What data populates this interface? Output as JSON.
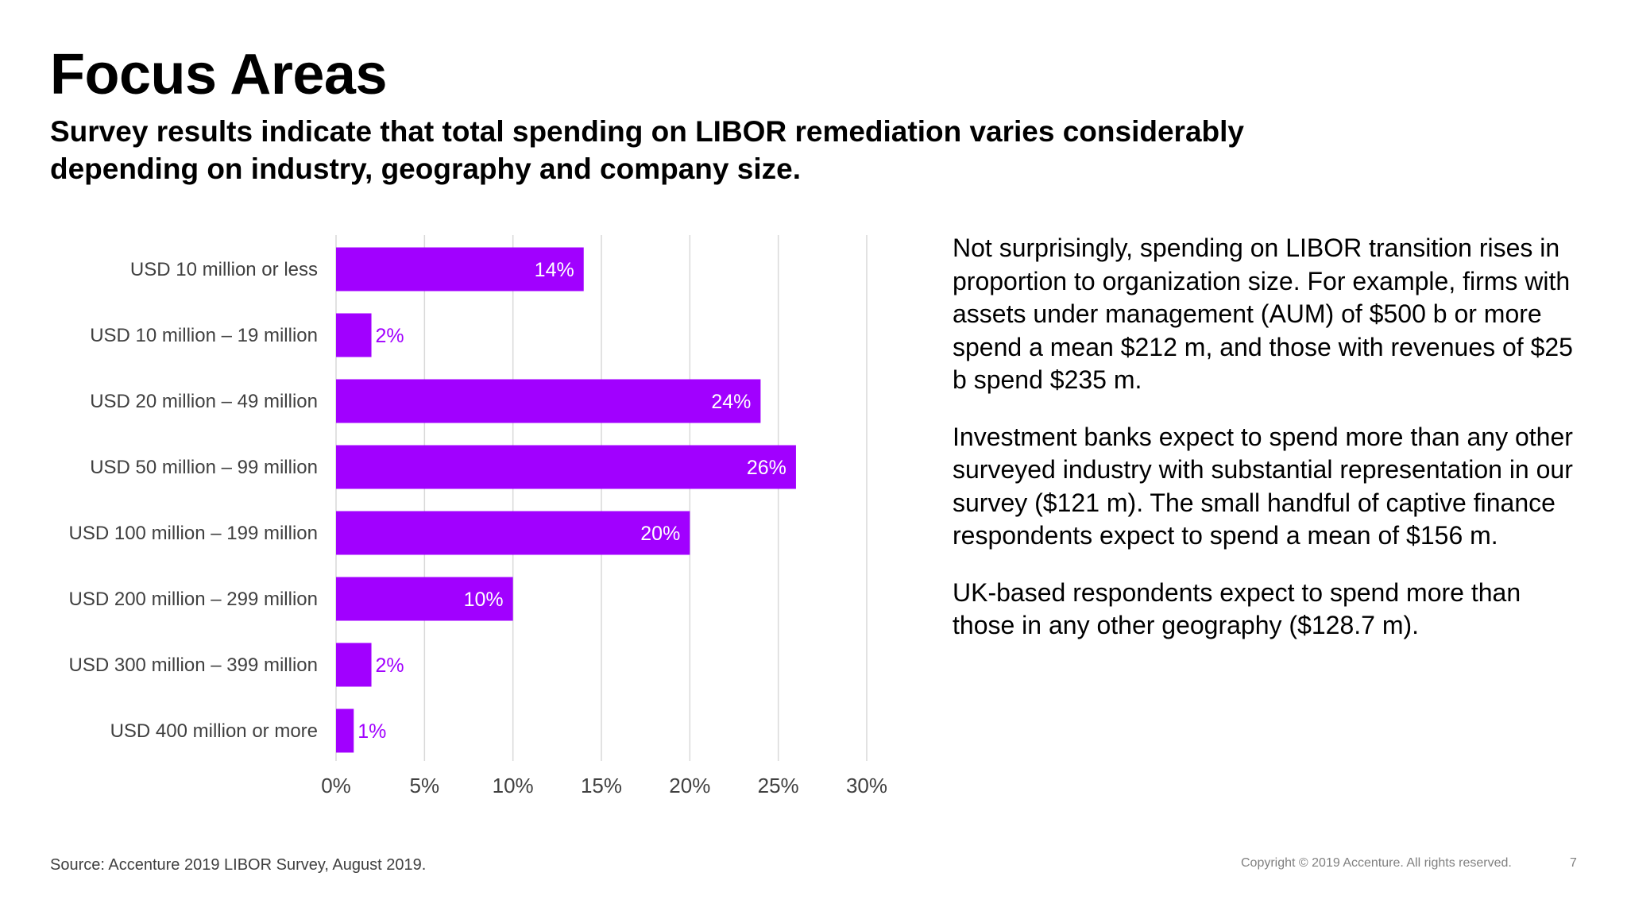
{
  "slide": {
    "title": "Focus Areas",
    "subtitle": "Survey results indicate that total spending on LIBOR remediation varies considerably depending on industry, geography and company size.",
    "paragraphs": [
      "Not surprisingly, spending on LIBOR transition rises in proportion to organization size. For example, firms with assets under management (AUM) of $500 b or more spend a mean $212 m, and those with revenues of $25 b spend $235 m.",
      "Investment banks expect to spend more than any other surveyed industry with substantial representation in our survey ($121 m). The small handful of captive finance respondents expect to spend a mean of $156 m.",
      "UK-based respondents expect to spend more than those in any other geography ($128.7 m)."
    ],
    "source": "Source: Accenture 2019 LIBOR Survey, August 2019.",
    "copyright": "Copyright © 2019 Accenture. All rights reserved.",
    "page_number": "7"
  },
  "chart_data": {
    "type": "bar",
    "orientation": "horizontal",
    "categories": [
      "USD 10 million or less",
      "USD 10 million – 19 million",
      "USD 20 million – 49 million",
      "USD 50 million – 99 million",
      "USD 100 million – 199 million",
      "USD 200 million – 299 million",
      "USD 300 million – 399 million",
      "USD 400 million or more"
    ],
    "values": [
      14,
      2,
      24,
      26,
      20,
      10,
      2,
      1
    ],
    "value_labels": [
      "14%",
      "2%",
      "24%",
      "26%",
      "20%",
      "10%",
      "2%",
      "1%"
    ],
    "xlim": [
      0,
      30
    ],
    "x_ticks": [
      0,
      5,
      10,
      15,
      20,
      25,
      30
    ],
    "x_tick_labels": [
      "0%",
      "5%",
      "10%",
      "15%",
      "20%",
      "25%",
      "30%"
    ],
    "title": "",
    "xlabel": "",
    "ylabel": "",
    "grid": true,
    "bar_color": "#a100ff",
    "label_color_inside": "#ffffff",
    "label_color_outside": "#a100ff"
  }
}
